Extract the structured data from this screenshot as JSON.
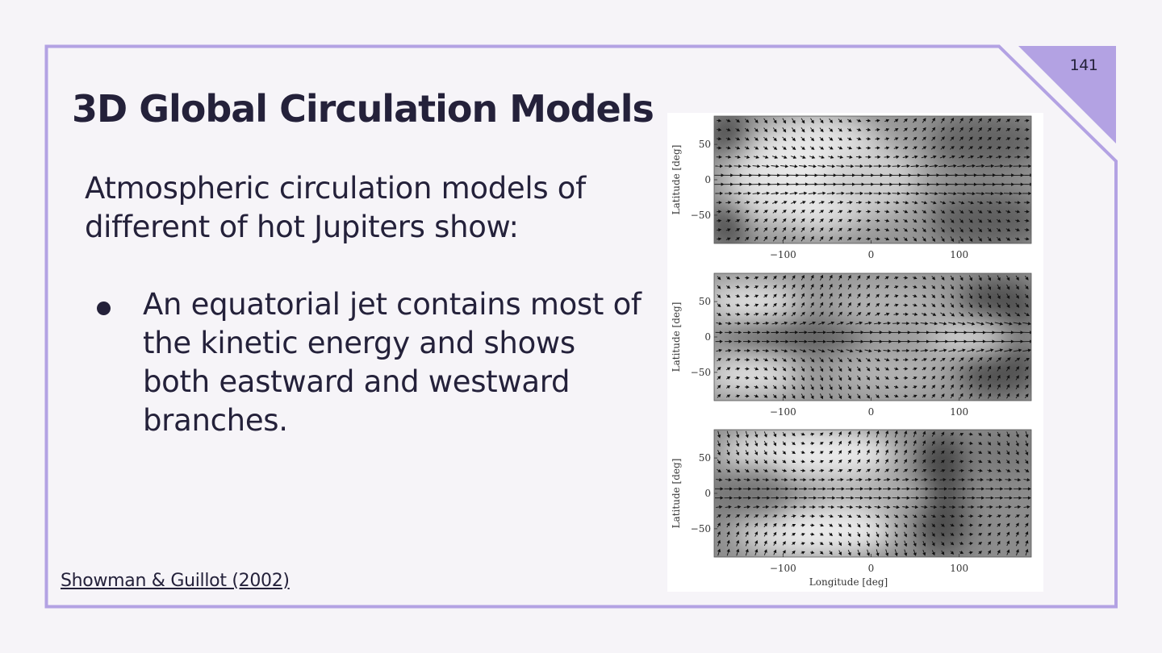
{
  "slide": {
    "page_number": "141",
    "title": "3D Global Circulation Models",
    "intro": "Atmospheric circulation models of different  of hot Jupiters show:",
    "bullets": [
      "An equatorial jet contains most of the kinetic energy and shows both eastward and westward branches."
    ],
    "citation": "Showman & Guillot (2002)",
    "colors": {
      "background": "#f6f4f8",
      "accent": "#b3a2e3",
      "text": "#24213a"
    }
  },
  "figure": {
    "panels": [
      {
        "ylabel": "Latitude [deg]",
        "yticks": [
          "50",
          "0",
          "−50"
        ],
        "xticks": [
          "−100",
          "0",
          "100"
        ],
        "xlabel": ""
      },
      {
        "ylabel": "Latitude [deg]",
        "yticks": [
          "50",
          "0",
          "−50"
        ],
        "xticks": [
          "−100",
          "0",
          "100"
        ],
        "xlabel": ""
      },
      {
        "ylabel": "Latitude [deg]",
        "yticks": [
          "50",
          "0",
          "−50"
        ],
        "xticks": [
          "−100",
          "0",
          "100"
        ],
        "xlabel": "Longitude [deg]"
      }
    ]
  }
}
